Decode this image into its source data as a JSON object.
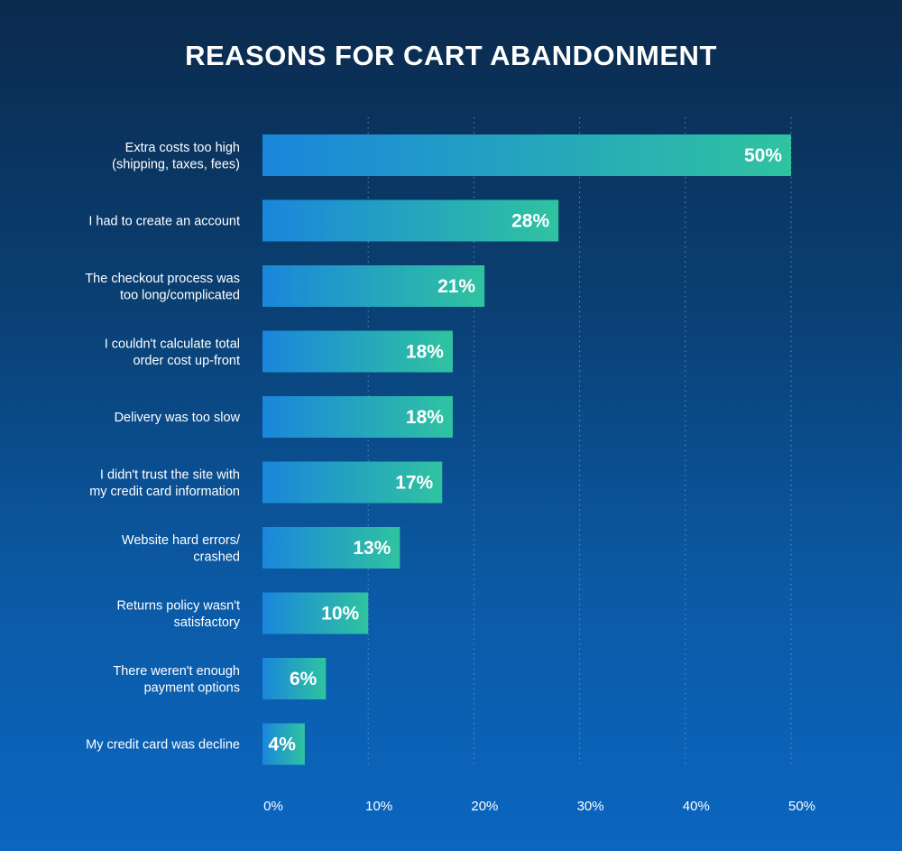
{
  "chart_data": {
    "type": "bar",
    "orientation": "horizontal",
    "title": "REASONS FOR CART ABANDONMENT",
    "categories": [
      "Extra costs too high\n(shipping, taxes, fees)",
      "I had to create an account",
      "The checkout process was\ntoo long/complicated",
      "I couldn't calculate total\norder cost up-front",
      "Delivery was too slow",
      "I didn't trust the site with\nmy credit card information",
      "Website hard errors/\ncrashed",
      "Returns policy wasn't\nsatisfactory",
      "There weren't enough\npayment options",
      "My credit card was decline"
    ],
    "values": [
      50,
      28,
      21,
      18,
      18,
      17,
      13,
      10,
      6,
      4
    ],
    "value_labels": [
      "50%",
      "28%",
      "21%",
      "18%",
      "18%",
      "17%",
      "13%",
      "10%",
      "6%",
      "4%"
    ],
    "xlim": [
      0,
      50
    ],
    "xticks": [
      0,
      10,
      20,
      30,
      40,
      50
    ],
    "xtick_labels": [
      "0%",
      "10%",
      "20%",
      "30%",
      "40%",
      "50%"
    ],
    "xlabel": "",
    "ylabel": "",
    "grid": true,
    "colors": {
      "bar_start": "#1a86dc",
      "bar_end": "#2fc3a0",
      "grid": "#7fa8d6",
      "text": "#ffffff"
    }
  }
}
